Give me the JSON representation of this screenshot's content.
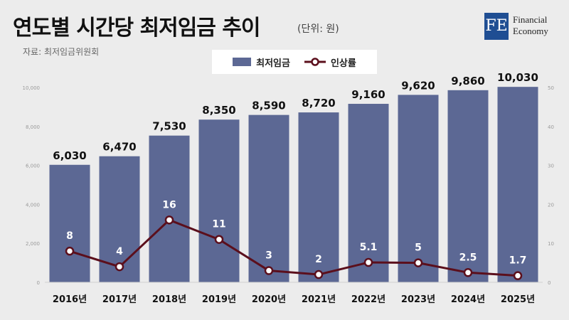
{
  "header": {
    "title": "연도별 시간당 최저임금 추이",
    "unit": "(단위: 원)",
    "source": "자료: 최저임금위원회"
  },
  "logo": {
    "mark": "FE",
    "line1": "Financial",
    "line2": "Economy"
  },
  "legend": {
    "bar_label": "최저임금",
    "line_label": "인상률"
  },
  "chart_data": {
    "type": "bar",
    "categories": [
      "2016년",
      "2017년",
      "2018년",
      "2019년",
      "2020년",
      "2021년",
      "2022년",
      "2023년",
      "2024년",
      "2025년"
    ],
    "series": [
      {
        "name": "최저임금",
        "type": "bar",
        "axis": "left",
        "values": [
          6030,
          6470,
          7530,
          8350,
          8590,
          8720,
          9160,
          9620,
          9860,
          10030
        ],
        "labels": [
          "6,030",
          "6,470",
          "7,530",
          "8,350",
          "8,590",
          "8,720",
          "9,160",
          "9,620",
          "9,860",
          "10,030"
        ]
      },
      {
        "name": "인상률",
        "type": "line",
        "axis": "right",
        "values": [
          8,
          4,
          16,
          11,
          3,
          2,
          5.1,
          5,
          2.5,
          1.7
        ],
        "labels": [
          "8",
          "4",
          "16",
          "11",
          "3",
          "2",
          "5.1",
          "5",
          "2.5",
          "1.7"
        ]
      }
    ],
    "y_left": {
      "ylim": [
        0,
        10000
      ],
      "ticks": [
        "0",
        "2,000",
        "4,000",
        "6,000",
        "8,000",
        "10,000"
      ]
    },
    "y_right": {
      "ylim": [
        0,
        50
      ],
      "ticks": [
        "0",
        "10",
        "20",
        "30",
        "40",
        "50"
      ]
    },
    "colors": {
      "bar": "#5c6894",
      "line": "#5b0f1c",
      "marker_fill": "#ffffff"
    },
    "legend_position": "top-center",
    "grid": false
  }
}
